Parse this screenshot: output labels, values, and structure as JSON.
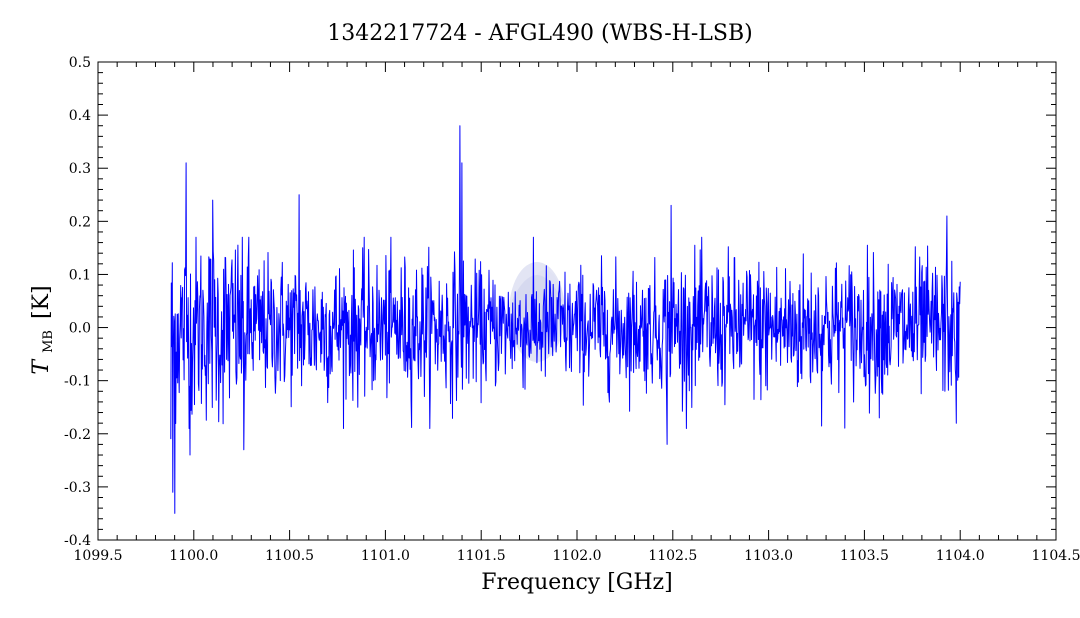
{
  "chart_data": {
    "type": "line",
    "title": "1342217724 - AFGL490 (WBS-H-LSB)",
    "xlabel": "Frequency [GHz]",
    "ylabel_main": "T",
    "ylabel_sub": "MB",
    "ylabel_unit": "[K]",
    "xlim": [
      1099.5,
      1104.5
    ],
    "ylim": [
      -0.4,
      0.5
    ],
    "x_ticks": [
      "1099.5",
      "1100.0",
      "1100.5",
      "1101.0",
      "1101.5",
      "1102.0",
      "1102.5",
      "1103.0",
      "1103.5",
      "1104.0",
      "1104.5"
    ],
    "y_ticks": [
      "0.5",
      "0.4",
      "0.3",
      "0.2",
      "0.1",
      "0.0",
      "-0.1",
      "-0.2",
      "-0.3",
      "-0.4"
    ],
    "series": [
      {
        "color": "#0000ff",
        "x_range": [
          1099.88,
          1104.0
        ],
        "noise_rms": 0.065,
        "features": [
          {
            "x": 1099.88,
            "y": -0.21
          },
          {
            "x": 1099.89,
            "y": -0.31
          },
          {
            "x": 1099.9,
            "y": -0.35
          },
          {
            "x": 1099.96,
            "y": 0.31
          },
          {
            "x": 1099.98,
            "y": -0.24
          },
          {
            "x": 1100.1,
            "y": 0.24
          },
          {
            "x": 1100.26,
            "y": -0.23
          },
          {
            "x": 1100.55,
            "y": 0.25
          },
          {
            "x": 1101.39,
            "y": 0.38
          },
          {
            "x": 1101.4,
            "y": 0.31
          },
          {
            "x": 1102.49,
            "y": 0.23
          },
          {
            "x": 1102.47,
            "y": -0.22
          },
          {
            "x": 1103.93,
            "y": 0.21
          },
          {
            "x": 1103.98,
            "y": -0.18
          }
        ]
      }
    ],
    "watermark_color": "#8c96d2"
  }
}
